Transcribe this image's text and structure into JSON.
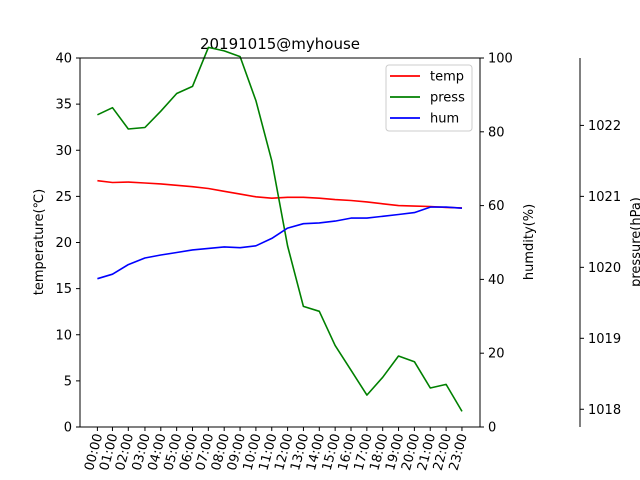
{
  "chart_data": {
    "type": "line",
    "title": "20191015@myhouse",
    "categories": [
      "00:00",
      "01:00",
      "02:00",
      "03:00",
      "04:00",
      "05:00",
      "06:00",
      "07:00",
      "08:00",
      "09:00",
      "10:00",
      "11:00",
      "12:00",
      "13:00",
      "14:00",
      "15:00",
      "16:00",
      "17:00",
      "18:00",
      "19:00",
      "20:00",
      "21:00",
      "22:00",
      "23:00"
    ],
    "x": [
      0,
      0.95,
      1.95,
      3,
      4,
      5,
      6,
      7,
      8,
      9,
      10,
      11,
      12,
      13,
      14,
      15,
      16,
      17,
      18,
      19,
      20,
      21,
      22,
      23
    ],
    "axes": {
      "temperature": {
        "label": "temperature(℃)",
        "ylim": [
          0,
          40
        ],
        "ticks": [
          "0",
          "5",
          "10",
          "15",
          "20",
          "25",
          "30",
          "35",
          "40"
        ]
      },
      "humidity": {
        "label": "humdity(%)",
        "ylim": [
          0,
          100
        ],
        "ticks": [
          "0",
          "20",
          "40",
          "60",
          "80",
          "100"
        ]
      },
      "pressure": {
        "label": "pressure(hPa)",
        "ylim": [
          1017.75,
          1022.95
        ],
        "ticks": [
          "1018",
          "1019",
          "1020",
          "1021",
          "1022"
        ]
      }
    },
    "series": [
      {
        "name": "temp",
        "axis": "temperature",
        "color": "#ff0000",
        "values": [
          26.7,
          26.5,
          26.55,
          26.45,
          26.35,
          26.2,
          26.05,
          25.85,
          25.55,
          25.25,
          24.95,
          24.8,
          24.9,
          24.9,
          24.8,
          24.65,
          24.55,
          24.4,
          24.2,
          24.0,
          23.95,
          23.9,
          23.8,
          23.75
        ]
      },
      {
        "name": "press",
        "axis": "pressure",
        "color": "#008000",
        "values": [
          1022.15,
          1022.25,
          1021.95,
          1021.97,
          1022.2,
          1022.45,
          1022.55,
          1023.1,
          1023.05,
          1022.97,
          1022.35,
          1021.5,
          1020.3,
          1019.45,
          1019.38,
          1018.9,
          1018.55,
          1018.2,
          1018.45,
          1018.75,
          1018.67,
          1018.3,
          1018.35,
          1017.97
        ]
      },
      {
        "name": "hum",
        "axis": "humidity",
        "color": "#0000ff",
        "values": [
          40.2,
          41.4,
          44.0,
          45.8,
          46.6,
          47.3,
          48.0,
          48.4,
          48.8,
          48.6,
          49.1,
          51.1,
          53.9,
          55.1,
          55.3,
          55.8,
          56.6,
          56.6,
          57.1,
          57.6,
          58.1,
          59.6,
          59.6,
          59.3
        ]
      }
    ],
    "legend": {
      "position": "top-right",
      "entries": [
        "temp",
        "press",
        "hum"
      ]
    },
    "grid": false
  }
}
